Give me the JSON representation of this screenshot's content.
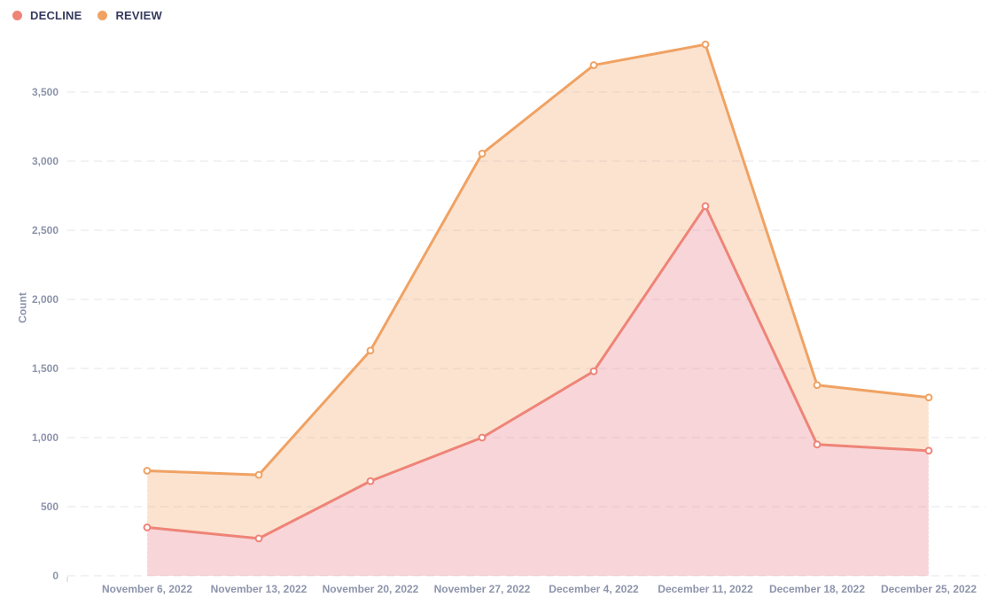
{
  "chart_data": {
    "type": "area",
    "title": "",
    "xlabel": "",
    "ylabel": "Count",
    "categories": [
      "November 6, 2022",
      "November 13, 2022",
      "November 20, 2022",
      "November 27, 2022",
      "December 4, 2022",
      "December 11, 2022",
      "December 18, 2022",
      "December 25, 2022"
    ],
    "series": [
      {
        "name": "DECLINE",
        "color": "#ee8477",
        "fill": "rgba(235,135,146,0.35)",
        "values": [
          350,
          270,
          685,
          1000,
          1480,
          2675,
          950,
          905
        ]
      },
      {
        "name": "REVIEW",
        "color": "#f0a263",
        "fill": "rgba(242,162,98,0.30)",
        "values": [
          760,
          730,
          1630,
          3055,
          3695,
          3845,
          1380,
          1290
        ]
      }
    ],
    "y_ticks": [
      {
        "v": 0,
        "label": "0"
      },
      {
        "v": 500,
        "label": "500"
      },
      {
        "v": 1000,
        "label": "1,000"
      },
      {
        "v": 1500,
        "label": "1,500"
      },
      {
        "v": 2000,
        "label": "2,000"
      },
      {
        "v": 2500,
        "label": "2,500"
      },
      {
        "v": 3000,
        "label": "3,000"
      },
      {
        "v": 3500,
        "label": "3,500"
      }
    ],
    "ylim": [
      0,
      3900
    ],
    "grid": "horizontal-dashed",
    "legend_position": "top-left",
    "marker": "circle-white-core"
  },
  "colors": {
    "legend_text": "#353b5e",
    "tick_text": "#8d94ab",
    "gridline": "#e4e6ec",
    "background": "#ffffff"
  }
}
